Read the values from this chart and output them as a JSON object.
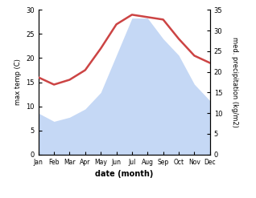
{
  "months": [
    "Jan",
    "Feb",
    "Mar",
    "Apr",
    "May",
    "Jun",
    "Jul",
    "Aug",
    "Sep",
    "Oct",
    "Nov",
    "Dec"
  ],
  "max_temp": [
    16,
    14.5,
    15.5,
    17.5,
    22,
    27,
    29,
    28.5,
    28,
    24,
    20.5,
    19
  ],
  "precipitation": [
    10,
    8,
    9,
    11,
    15,
    24,
    33,
    33,
    28,
    24,
    17,
    13
  ],
  "temp_color": "#cc4444",
  "precip_fill_color": "#c5d8f5",
  "background_color": "#ffffff",
  "temp_ylim": [
    0,
    30
  ],
  "precip_ylim": [
    0,
    35
  ],
  "temp_yticks": [
    0,
    5,
    10,
    15,
    20,
    25,
    30
  ],
  "precip_yticks": [
    0,
    5,
    10,
    15,
    20,
    25,
    30,
    35
  ],
  "ylabel_left": "max temp (C)",
  "ylabel_right": "med. precipitation (kg/m2)",
  "xlabel": "date (month)"
}
